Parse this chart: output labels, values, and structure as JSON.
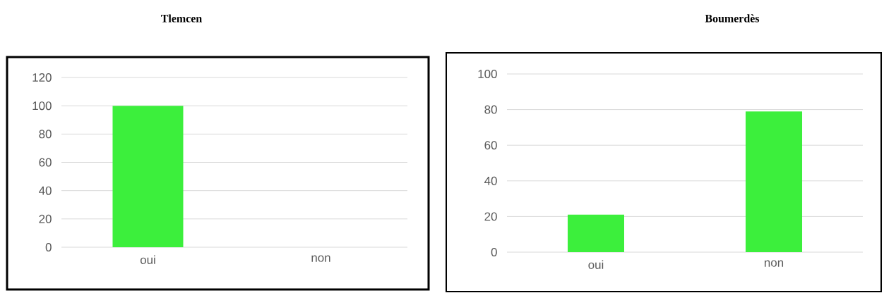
{
  "chart_data": [
    {
      "type": "bar",
      "title": "Tlemcen",
      "categories": [
        "oui",
        "non"
      ],
      "values": [
        100,
        0
      ],
      "color": "#3cef3c",
      "ylim": [
        0,
        120
      ],
      "yticks": [
        0,
        20,
        40,
        60,
        80,
        100,
        120
      ],
      "grid": "y"
    },
    {
      "type": "bar",
      "title": "Boumerdès",
      "categories": [
        "oui",
        "non"
      ],
      "values": [
        21,
        79
      ],
      "color": "#3cef3c",
      "ylim": [
        0,
        100
      ],
      "yticks": [
        0,
        20,
        40,
        60,
        80,
        100
      ],
      "grid": "y"
    }
  ]
}
